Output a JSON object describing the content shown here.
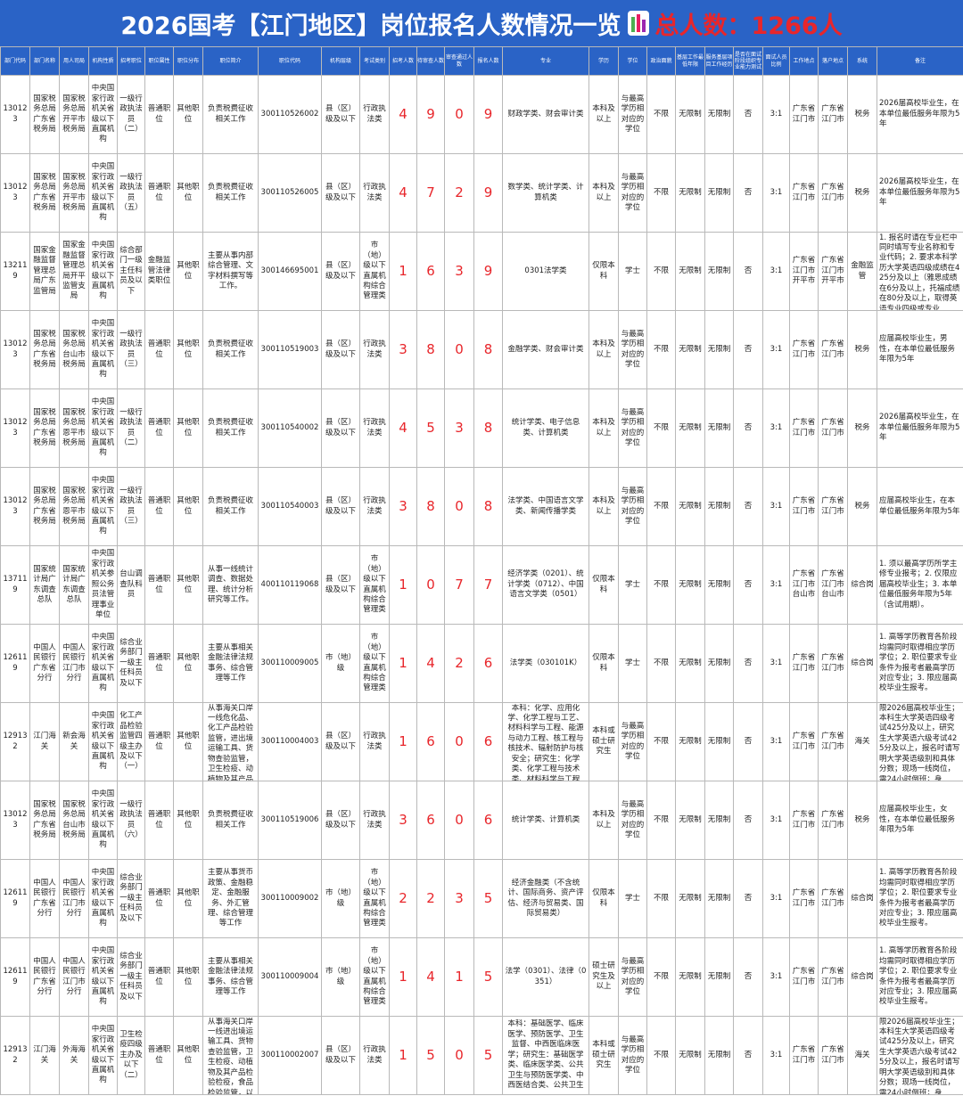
{
  "header": {
    "title": "2026国考【江门地区】岗位报名人数情况一览",
    "total": "总人数：1266人"
  },
  "table": {
    "headers": [
      "部门代码",
      "部门名称",
      "用人司局",
      "机构性质",
      "招考职位",
      "职位属性",
      "职位分布",
      "职位简介",
      "职位代码",
      "机构层级",
      "考试类别",
      "招考人数",
      "待审查人数",
      "审查通过人数",
      "报名人数",
      "专业",
      "学历",
      "学位",
      "政治面貌",
      "基层工作最低年限",
      "服务基层项目工作经历",
      "是否在面试阶段组织专业能力测试",
      "面试人员比例",
      "工作地点",
      "落户地点",
      "系统",
      "备注"
    ],
    "rows": [
      [
        "130123",
        "国家税务总局广东省税务局",
        "国家税务总局开平市税务局",
        "中央国家行政机关省级以下直属机构",
        "一级行政执法员（二）",
        "普通职位",
        "其他职位",
        "负责税费征收相关工作",
        "300110526002",
        "县（区）级及以下",
        "行政执法类",
        4,
        9,
        0,
        9,
        "财政学类、财会审计类",
        "本科及以上",
        "与最高学历相对应的学位",
        "不限",
        "无限制",
        "无限制",
        "否",
        "3:1",
        "广东省江门市",
        "广东省江门市",
        "税务",
        "2026届高校毕业生，在本单位最低服务年限为5年"
      ],
      [
        "130123",
        "国家税务总局广东省税务局",
        "国家税务总局开平市税务局",
        "中央国家行政机关省级以下直属机构",
        "一级行政执法员（五）",
        "普通职位",
        "其他职位",
        "负责税费征收相关工作",
        "300110526005",
        "县（区）级及以下",
        "行政执法类",
        4,
        7,
        2,
        9,
        "数学类、统计学类、计算机类",
        "本科及以上",
        "与最高学历相对应的学位",
        "不限",
        "无限制",
        "无限制",
        "否",
        "3:1",
        "广东省江门市",
        "广东省江门市",
        "税务",
        "2026届高校毕业生，在本单位最低服务年限为5年"
      ],
      [
        "132119",
        "国家金融监督管理总局广东监管局",
        "国家金融监督管理总局开平监管支局",
        "中央国家行政机关省级以下直属机构",
        "综合部门一级主任科员及以下",
        "金融监管法律类职位",
        "其他职位",
        "主要从事内部综合管理、文字材料撰写等工作。",
        "300146695001",
        "县（区）级及以下",
        "市（地）级以下直属机构综合管理类",
        1,
        6,
        3,
        9,
        "0301法学类",
        "仅限本科",
        "学士",
        "不限",
        "无限制",
        "无限制",
        "否",
        "3:1",
        "广东省江门市开平市",
        "广东省江门市开平市",
        "金融监管",
        "1. 报名时请在专业栏中同时填写专业名称和专业代码；2. 要求本科学历大学英语四级成绩在425分及以上（雅思成绩在6分及以上，托福成绩在80分及以上，取得英语专业四级或专业"
      ],
      [
        "130123",
        "国家税务总局广东省税务局",
        "国家税务总局台山市税务局",
        "中央国家行政机关省级以下直属机构",
        "一级行政执法员（三）",
        "普通职位",
        "其他职位",
        "负责税费征收相关工作",
        "300110519003",
        "县（区）级及以下",
        "行政执法类",
        3,
        8,
        0,
        8,
        "金融学类、财会审计类",
        "本科及以上",
        "与最高学历相对应的学位",
        "不限",
        "无限制",
        "无限制",
        "否",
        "3:1",
        "广东省江门市",
        "广东省江门市",
        "税务",
        "应届高校毕业生，男性，在本单位最低服务年限为5年"
      ],
      [
        "130123",
        "国家税务总局广东省税务局",
        "国家税务总局恩平市税务局",
        "中央国家行政机关省级以下直属机构",
        "一级行政执法员（二）",
        "普通职位",
        "其他职位",
        "负责税费征收相关工作",
        "300110540002",
        "县（区）级及以下",
        "行政执法类",
        4,
        5,
        3,
        8,
        "统计学类、电子信息类、计算机类",
        "本科及以上",
        "与最高学历相对应的学位",
        "不限",
        "无限制",
        "无限制",
        "否",
        "3:1",
        "广东省江门市",
        "广东省江门市",
        "税务",
        "2026届高校毕业生，在本单位最低服务年限为5年"
      ],
      [
        "130123",
        "国家税务总局广东省税务局",
        "国家税务总局恩平市税务局",
        "中央国家行政机关省级以下直属机构",
        "一级行政执法员（三）",
        "普通职位",
        "其他职位",
        "负责税费征收相关工作",
        "300110540003",
        "县（区）级及以下",
        "行政执法类",
        3,
        8,
        0,
        8,
        "法学类、中国语言文学类、新闻传播学类",
        "本科及以上",
        "与最高学历相对应的学位",
        "不限",
        "无限制",
        "无限制",
        "否",
        "3:1",
        "广东省江门市",
        "广东省江门市",
        "税务",
        "应届高校毕业生，在本单位最低服务年限为5年"
      ],
      [
        "137119",
        "国家统计局广东调查总队",
        "国家统计局广东调查总队",
        "中央国家行政机关参照公务员法管理事业单位",
        "台山调查队科员",
        "普通职位",
        "其他职位",
        "从事一线统计调查、数据处理、统计分析研究等工作。",
        "400110119068",
        "县（区）级及以下",
        "市（地）级以下直属机构综合管理类",
        1,
        0,
        7,
        7,
        "经济学类（0201）、统计学类（0712）、中国语言文学类（0501）",
        "仅限本科",
        "学士",
        "不限",
        "无限制",
        "无限制",
        "否",
        "3:1",
        "广东省江门市台山市",
        "广东省江门市台山市",
        "综合岗",
        "1. 须以最高学历所学主修专业报考；2. 仅限应届高校毕业生；3. 本单位最低服务年限为5年（含试用期）。"
      ],
      [
        "126119",
        "中国人民银行广东省分行",
        "中国人民银行江门市分行",
        "中央国家行政机关省级以下直属机构",
        "综合业务部门一级主任科员及以下",
        "普通职位",
        "其他职位",
        "主要从事相关金融法律法规事务、综合管理等工作",
        "300110009005",
        "市（地）级",
        "市（地）级以下直属机构综合管理类",
        1,
        4,
        2,
        6,
        "法学类（030101K）",
        "仅限本科",
        "学士",
        "不限",
        "无限制",
        "无限制",
        "否",
        "3:1",
        "广东省江门市",
        "广东省江门市",
        "综合岗",
        "1. 高等学历教育各阶段均需同时取得相应学历学位；2. 职位要求专业条件为报考者最高学历对应专业；3. 限应届高校毕业生报考。"
      ],
      [
        "129132",
        "江门海关",
        "新会海关",
        "中央国家行政机关省级以下直属机构",
        "化工产品检验监管四级主办及以下（一）",
        "普通职位",
        "其他职位",
        "从事海关口岸一线危化品、化工产品检验监管，进出境运输工具、货物查验监管，卫生检疫、动植物及其产品",
        "300110004003",
        "县（区）级及以下",
        "行政执法类",
        1,
        6,
        0,
        6,
        "本科：化学、应用化学、化学工程与工艺、材料科学与工程、能源与动力工程、核工程与核技术、辐射防护与核安全；研究生：化学类、化学工程与技术类、材料科学与工程类、能源",
        "本科或硕士研究生",
        "与最高学历相对应的学位",
        "不限",
        "无限制",
        "无限制",
        "否",
        "3:1",
        "广东省江门市",
        "广东省江门市",
        "海关",
        "限2026届高校毕业生；本科生大学英语四级考试425分及以上，研究生大学英语六级考试425分及以上，报名时请写明大学英语级别和具体分数；现场一线岗位，需24小时倒班；身"
      ],
      [
        "130123",
        "国家税务总局广东省税务局",
        "国家税务总局台山市税务局",
        "中央国家行政机关省级以下直属机构",
        "一级行政执法员（六）",
        "普通职位",
        "其他职位",
        "负责税费征收相关工作",
        "300110519006",
        "县（区）级及以下",
        "行政执法类",
        3,
        6,
        0,
        6,
        "统计学类、计算机类",
        "本科及以上",
        "与最高学历相对应的学位",
        "不限",
        "无限制",
        "无限制",
        "否",
        "3:1",
        "广东省江门市",
        "广东省江门市",
        "税务",
        "应届高校毕业生，女性，在本单位最低服务年限为5年"
      ],
      [
        "126119",
        "中国人民银行广东省分行",
        "中国人民银行江门市分行",
        "中央国家行政机关省级以下直属机构",
        "综合业务部门一级主任科员及以下",
        "普通职位",
        "其他职位",
        "主要从事货币政策、金融稳定、金融服务、外汇管理、综合管理等工作",
        "300110009002",
        "市（地）级",
        "市（地）级以下直属机构综合管理类",
        2,
        2,
        3,
        5,
        "经济金融类（不含统计、国际商务、资产评估、经济与贸易类、国际贸易类）",
        "仅限本科",
        "学士",
        "不限",
        "无限制",
        "无限制",
        "否",
        "3:1",
        "广东省江门市",
        "广东省江门市",
        "综合岗",
        "1. 高等学历教育各阶段均需同时取得相应学历学位；2. 职位要求专业条件为报考者最高学历对应专业；3. 限应届高校毕业生报考。"
      ],
      [
        "126119",
        "中国人民银行广东省分行",
        "中国人民银行江门市分行",
        "中央国家行政机关省级以下直属机构",
        "综合业务部门一级主任科员及以下",
        "普通职位",
        "其他职位",
        "主要从事相关金融法律法规事务、综合管理等工作",
        "300110009004",
        "市（地）级",
        "市（地）级以下直属机构综合管理类",
        1,
        4,
        1,
        5,
        "法学（0301）、法律（0351）",
        "硕士研究生及以上",
        "与最高学历相对应的学位",
        "不限",
        "无限制",
        "无限制",
        "否",
        "3:1",
        "广东省江门市",
        "广东省江门市",
        "综合岗",
        "1. 高等学历教育各阶段均需同时取得相应学历学位；2. 职位要求专业条件为报考者最高学历对应专业；3. 限应届高校毕业生报考。"
      ],
      [
        "129132",
        "江门海关",
        "外海海关",
        "中央国家行政机关省级以下直属机构",
        "卫生检疫四级主办及以下（二）",
        "普通职位",
        "其他职位",
        "从事海关口岸一线进出境运输工具、货物查验监管，卫生检疫、动植物及其产品检验检疫，食品检验监管，以",
        "300110002007",
        "县（区）级及以下",
        "行政执法类",
        1,
        5,
        0,
        5,
        "本科：基础医学、临床医学、预防医学、卫生监督、中西医临床医学；研究生：基础医学类、临床医学类、公共卫生与预防医学类、中西医结合类、公共卫生",
        "本科或硕士研究生",
        "与最高学历相对应的学位",
        "不限",
        "无限制",
        "无限制",
        "否",
        "3:1",
        "广东省江门市",
        "广东省江门市",
        "海关",
        "限2026届高校毕业生；本科生大学英语四级考试425分及以上，研究生大学英语六级考试425分及以上，报名时请写明大学英语级别和具体分数；现场一线岗位，需24小时倒班；身"
      ]
    ]
  }
}
